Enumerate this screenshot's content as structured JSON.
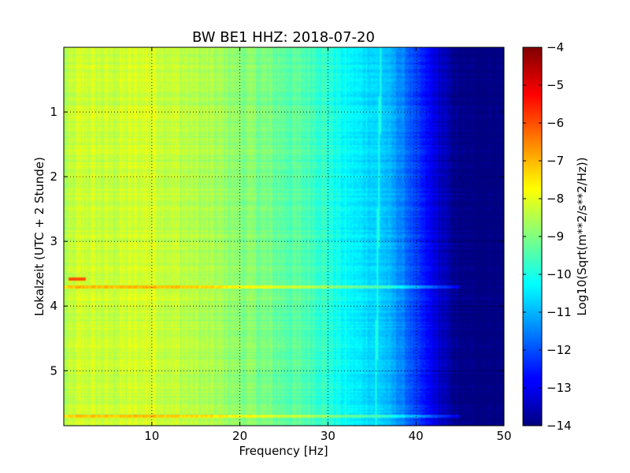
{
  "chart_data": {
    "type": "heatmap",
    "title": "BW BE1 HHZ: 2018-07-20",
    "xlabel": "Frequency [Hz]",
    "ylabel": "Lokalzeit (UTC + 2 Stunde)",
    "xlim": [
      0,
      50
    ],
    "ylim": [
      5.85,
      0
    ],
    "y_inverted": true,
    "x_ticks": [
      10,
      20,
      30,
      40,
      50
    ],
    "y_ticks": [
      1,
      2,
      3,
      4,
      5
    ],
    "grid": true,
    "colormap": "jet",
    "colorbar": {
      "label": "Log10(Sqrt(m**2/s**2/Hz))",
      "min": -14,
      "max": -4,
      "ticks": [
        -4,
        -5,
        -6,
        -7,
        -8,
        -9,
        -10,
        -11,
        -12,
        -13,
        -14
      ]
    },
    "spectrum_profile": {
      "frequency_hz": [
        0,
        2,
        5,
        8,
        10,
        12,
        15,
        18,
        20,
        22,
        25,
        28,
        30,
        31,
        33,
        35,
        36,
        37,
        38,
        39,
        40,
        41,
        42,
        43,
        44,
        45,
        50
      ],
      "log10_psd": [
        -8.6,
        -8.2,
        -8.3,
        -8.2,
        -8.1,
        -8.3,
        -8.5,
        -8.7,
        -8.9,
        -9.0,
        -9.3,
        -9.5,
        -9.8,
        -10.1,
        -10.4,
        -10.6,
        -10.7,
        -11.0,
        -11.3,
        -11.7,
        -12.2,
        -12.6,
        -13.0,
        -13.4,
        -13.7,
        -14.0,
        -14.0
      ]
    },
    "features": [
      {
        "type": "horizontal_band",
        "time_h": 3.58,
        "freq_range_hz": [
          0.5,
          2.5
        ],
        "log10_psd": -6.0
      },
      {
        "type": "horizontal_band",
        "time_h": 3.7,
        "freq_range_hz": [
          0,
          45
        ],
        "log10_psd_offset": 1.0
      },
      {
        "type": "horizontal_band",
        "time_h": 5.7,
        "freq_range_hz": [
          0,
          45
        ],
        "log10_psd_offset": 1.0
      },
      {
        "type": "spectral_line",
        "freq_hz_start": 36.0,
        "freq_hz_end": 35.4,
        "log10_psd": -10.0
      }
    ]
  }
}
